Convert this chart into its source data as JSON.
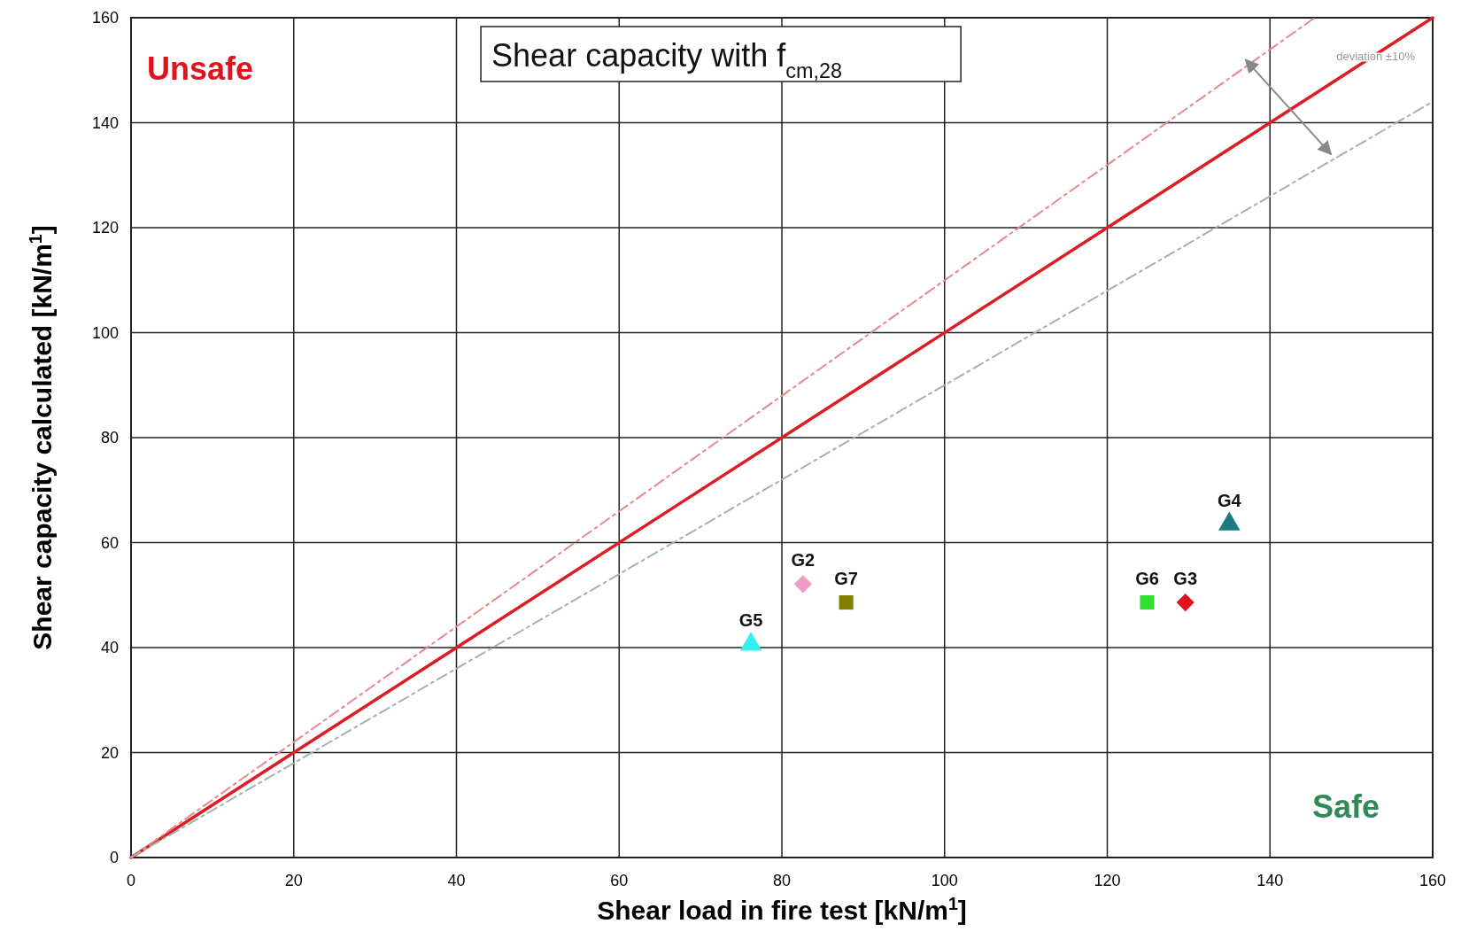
{
  "chart_data": {
    "type": "scatter",
    "title": "Shear capacity with f$_{cm,28}$",
    "xlabel": "Shear load in fire test [kN/m$^{1}$]",
    "ylabel": "Shear capacity calculated [kN/m$^{1}$]",
    "xlim": [
      0,
      160
    ],
    "ylim": [
      0,
      160
    ],
    "xticks": [
      0,
      20,
      40,
      60,
      80,
      100,
      120,
      140,
      160
    ],
    "yticks": [
      0,
      20,
      40,
      60,
      80,
      100,
      120,
      140,
      160
    ],
    "grid": true,
    "annotations": [
      "Unsafe",
      "Safe",
      "deviation ±10%"
    ],
    "series": [
      {
        "type": "line",
        "color": "#dd1c24",
        "x": [
          0,
          160
        ],
        "values": [
          0,
          160
        ],
        "line_style": "solid",
        "marker": "none"
      },
      {
        "type": "line",
        "color": "#e8878c",
        "x": [
          0,
          145.5
        ],
        "values": [
          0,
          160
        ],
        "line_style": "dashed",
        "marker": "none"
      },
      {
        "type": "line",
        "color": "#9fb5a8",
        "x": [
          0,
          160
        ],
        "values": [
          0,
          144
        ],
        "line_style": "dashed",
        "marker": "none"
      },
      {
        "name": "G2",
        "color": "#f09ac4",
        "x": [
          82.6
        ],
        "values": [
          52.1
        ],
        "marker": "diamond"
      },
      {
        "name": "G7",
        "color": "#808000",
        "x": [
          87.9
        ],
        "values": [
          48.6
        ],
        "marker": "square"
      },
      {
        "name": "G5",
        "color": "#33eeee",
        "x": [
          76.2
        ],
        "values": [
          40.6
        ],
        "marker": "triangle"
      },
      {
        "name": "G6",
        "color": "#33dd33",
        "x": [
          124.9
        ],
        "values": [
          48.6
        ],
        "marker": "square"
      },
      {
        "name": "G3",
        "color": "#e0141c",
        "x": [
          129.6
        ],
        "values": [
          48.6
        ],
        "marker": "diamond"
      },
      {
        "name": "G4",
        "color": "#1a7a80",
        "x": [
          135.0
        ],
        "values": [
          63.5
        ],
        "marker": "triangle"
      }
    ]
  }
}
